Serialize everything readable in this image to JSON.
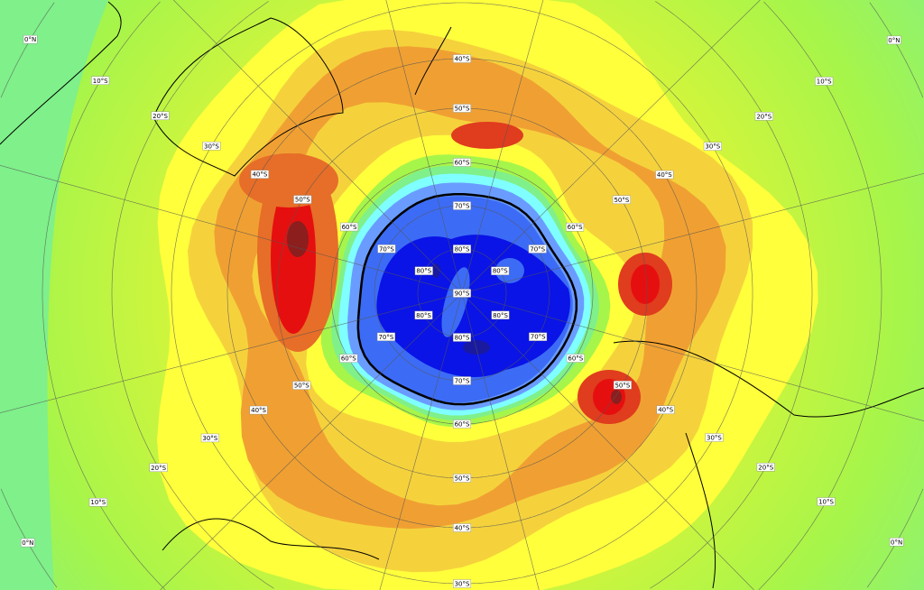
{
  "map": {
    "projection": "south polar stereographic",
    "latitude_labels": [
      "0°N",
      "10°S",
      "20°S",
      "30°S",
      "40°S",
      "50°S",
      "60°S",
      "70°S",
      "80°S"
    ],
    "pole_label": "90°S",
    "colors": {
      "very_low": "#1a1aa0",
      "low": "#0a14e6",
      "low_mid": "#3c6cf5",
      "mid_blue": "#6a9cff",
      "cyan": "#7fffff",
      "green_light": "#7ff08a",
      "green": "#a6f54a",
      "yellow_green": "#d2f53c",
      "yellow": "#ffff3c",
      "yellow_orange": "#f5d23c",
      "orange": "#f0a032",
      "orange_dark": "#e66e28",
      "red_orange": "#e03c1e",
      "red": "#e60f0f",
      "dark_red": "#8c1e1e",
      "hole_boundary": "#000000"
    }
  }
}
